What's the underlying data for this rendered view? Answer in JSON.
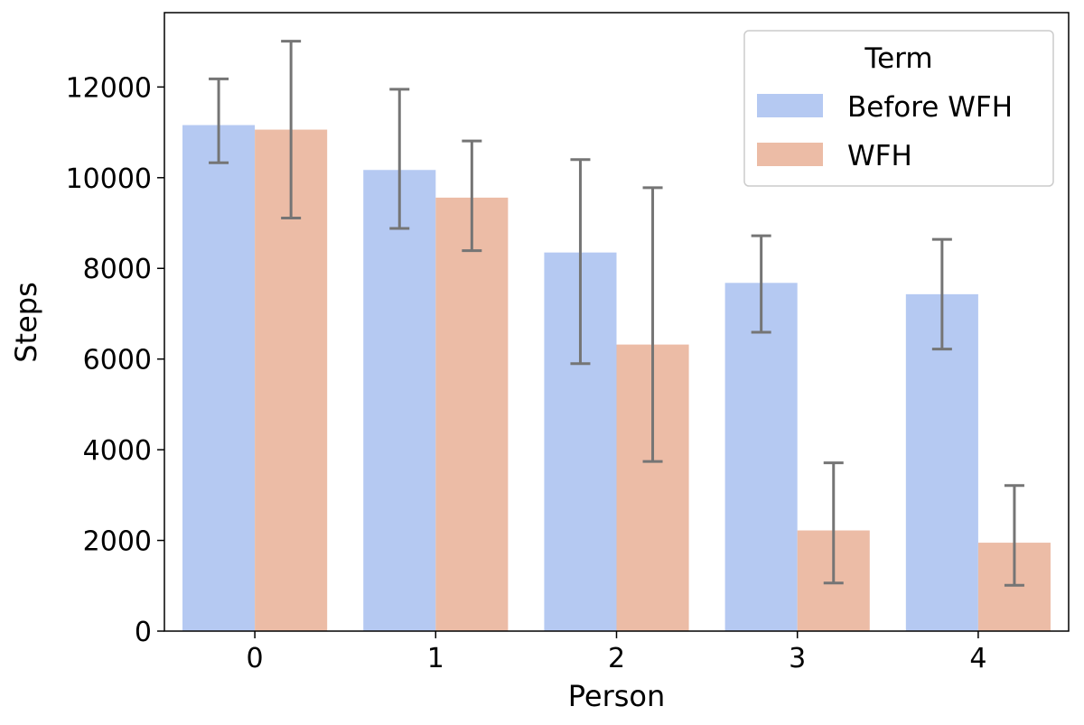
{
  "chart_data": {
    "type": "bar",
    "title": "",
    "xlabel": "Person",
    "ylabel": "Steps",
    "categories": [
      "0",
      "1",
      "2",
      "3",
      "4"
    ],
    "ylim": [
      0,
      13640
    ],
    "yticks": [
      0,
      2000,
      4000,
      6000,
      8000,
      10000,
      12000
    ],
    "series": [
      {
        "name": "Before WFH",
        "color": "#b5c9f2",
        "values": [
          11160,
          10170,
          8350,
          7680,
          7430
        ],
        "error_low": [
          10330,
          8880,
          5900,
          6590,
          6220
        ],
        "error_high": [
          12180,
          11950,
          10400,
          8720,
          8640
        ]
      },
      {
        "name": "WFH",
        "color": "#ecbca6",
        "values": [
          11060,
          9560,
          6320,
          2220,
          1950
        ],
        "error_low": [
          9110,
          8390,
          3740,
          1060,
          1010
        ],
        "error_high": [
          13010,
          10810,
          9780,
          3710,
          3210
        ]
      }
    ],
    "errorbar_color": "#757575",
    "legend": {
      "title": "Term",
      "position": "top-right"
    },
    "grid": false
  }
}
